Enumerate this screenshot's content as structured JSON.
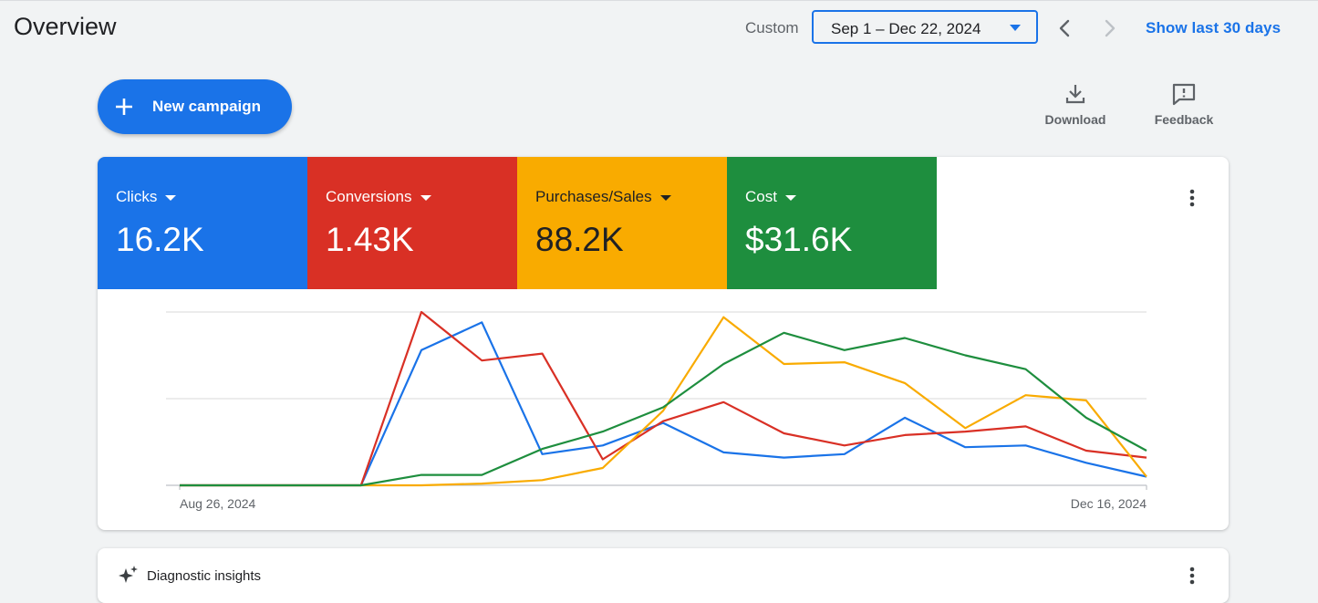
{
  "header": {
    "title": "Overview",
    "custom_label": "Custom",
    "date_range": "Sep 1 – Dec 22, 2024",
    "show_last": "Show last 30 days"
  },
  "actions": {
    "new_campaign": "New campaign",
    "download": "Download",
    "feedback": "Feedback"
  },
  "metrics": [
    {
      "name": "Clicks",
      "value": "16.2K",
      "color": "#1a73e8"
    },
    {
      "name": "Conversions",
      "value": "1.43K",
      "color": "#d93025"
    },
    {
      "name": "Purchases/Sales",
      "value": "88.2K",
      "color": "#f9ab00"
    },
    {
      "name": "Cost",
      "value": "$31.6K",
      "color": "#1e8e3e"
    }
  ],
  "chart_data": {
    "type": "line",
    "x_labels": [
      "Aug 26, 2024",
      "Dec 16, 2024"
    ],
    "x": [
      "Aug 26",
      "Sep 2",
      "Sep 9",
      "Sep 16",
      "Sep 23",
      "Sep 30",
      "Oct 7",
      "Oct 14",
      "Oct 21",
      "Oct 28",
      "Nov 4",
      "Nov 11",
      "Nov 18",
      "Nov 25",
      "Dec 2",
      "Dec 9",
      "Dec 16"
    ],
    "ylim": [
      0,
      100
    ],
    "grid": true,
    "y_axis_labels": false,
    "series": [
      {
        "metric": "Clicks",
        "color": "#1a73e8",
        "values": [
          0,
          0,
          0,
          0,
          78,
          94,
          18,
          23,
          36,
          19,
          16,
          18,
          39,
          22,
          23,
          13,
          5
        ]
      },
      {
        "metric": "Conversions",
        "color": "#d93025",
        "values": [
          0,
          0,
          0,
          0,
          100,
          72,
          76,
          15,
          37,
          48,
          30,
          23,
          29,
          31,
          34,
          20,
          16
        ]
      },
      {
        "metric": "Purchases/Sales",
        "color": "#f9ab00",
        "values": [
          0,
          0,
          0,
          0,
          0,
          1,
          3,
          10,
          43,
          97,
          70,
          71,
          59,
          33,
          52,
          49,
          5
        ]
      },
      {
        "metric": "Cost",
        "color": "#1e8e3e",
        "values": [
          0,
          0,
          0,
          0,
          6,
          6,
          21,
          31,
          45,
          70,
          88,
          78,
          85,
          75,
          67,
          39,
          20
        ]
      }
    ]
  },
  "insights": {
    "label": "Diagnostic insights"
  }
}
